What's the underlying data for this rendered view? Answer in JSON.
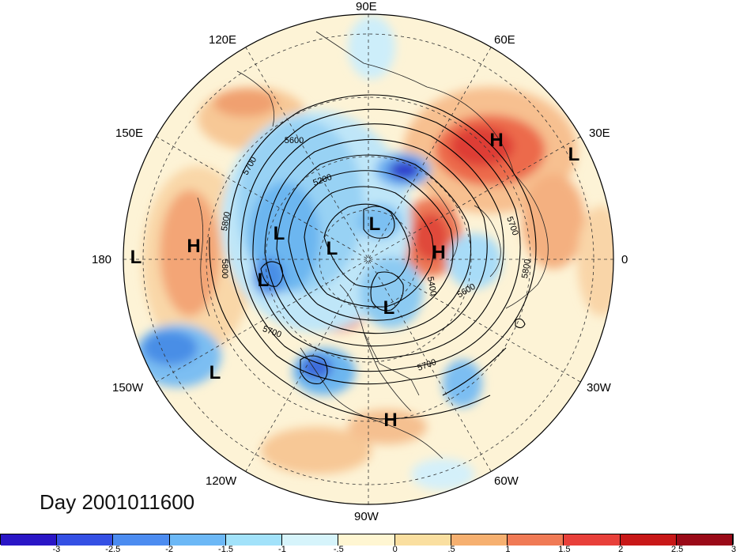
{
  "title": "Day 2001011600",
  "longitude_labels": {
    "lon_90e": "90E",
    "lon_60e": "60E",
    "lon_30e": "30E",
    "lon_0": "0",
    "lon_30w": "30W",
    "lon_60w": "60W",
    "lon_90w": "90W",
    "lon_120w": "120W",
    "lon_150w": "150W",
    "lon_180": "180",
    "lon_150e": "150E",
    "lon_120e": "120E"
  },
  "pressure_centers": [
    {
      "id": "h-eurasia",
      "type": "H"
    },
    {
      "id": "l-east-europe",
      "type": "L"
    },
    {
      "id": "l-pole-1",
      "type": "L"
    },
    {
      "id": "l-siberia",
      "type": "L"
    },
    {
      "id": "l-pole-2",
      "type": "L"
    },
    {
      "id": "h-west-europe",
      "type": "H"
    },
    {
      "id": "h-pacific",
      "type": "H"
    },
    {
      "id": "l-dateline",
      "type": "L"
    },
    {
      "id": "l-alaska",
      "type": "L"
    },
    {
      "id": "l-canada",
      "type": "L"
    },
    {
      "id": "l-gulf-alaska",
      "type": "L"
    },
    {
      "id": "h-caribbean",
      "type": "H"
    }
  ],
  "contour_labels": {
    "c5600a": "5600",
    "c5700a": "5700",
    "c5200": "5200",
    "c5800a": "5800",
    "c5800b": "5800",
    "c5700b": "5700",
    "c5700c": "5700",
    "c5400": "5400",
    "c5600b": "5600",
    "c5800c": "5800",
    "c5700d": "5700"
  },
  "colorbar": {
    "colors": [
      "#2a16c6",
      "#3450e4",
      "#4c8cf0",
      "#6cb8f6",
      "#a2e2fa",
      "#d6f4fb",
      "#fff6d2",
      "#fadfa0",
      "#f6b070",
      "#f07a55",
      "#e8403a",
      "#c81818",
      "#9a0a18"
    ],
    "ticks": [
      "-3",
      "-2.5",
      "-2",
      "-1.5",
      "-1",
      "-.5",
      "0",
      ".5",
      "1",
      "1.5",
      "2",
      "2.5",
      "3"
    ]
  },
  "colors": {
    "neutral": "#fff8e0",
    "warm_light": "#f9ddb0",
    "warm": "#f39a6e",
    "hot": "#e24a3c",
    "cool_light": "#d4f0fa",
    "cool": "#94d2f2",
    "cold": "#4a8fe6",
    "coldest": "#2636c8"
  }
}
